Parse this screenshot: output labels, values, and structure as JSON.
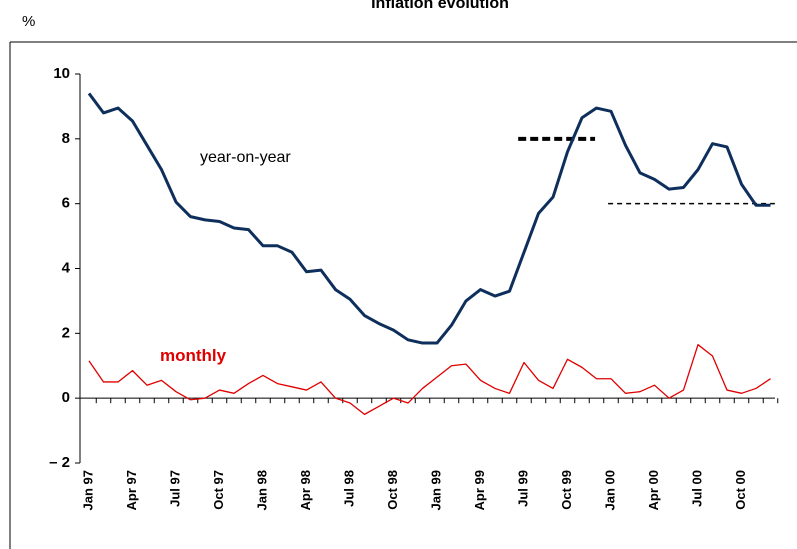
{
  "chart_data": {
    "type": "line",
    "title": "Inflation evolution",
    "y_label": "%",
    "categories": [
      "Jan 97",
      null,
      null,
      "Apr 97",
      null,
      null,
      "Jul 97",
      null,
      null,
      "Oct 97",
      null,
      null,
      "Jan 98",
      null,
      null,
      "Apr 98",
      null,
      null,
      "Jul 98",
      null,
      null,
      "Oct 98",
      null,
      null,
      "Jan 99",
      null,
      null,
      "Apr 99",
      null,
      null,
      "Jul 99",
      null,
      null,
      "Oct 99",
      null,
      null,
      "Jan 00",
      null,
      null,
      "Apr 00",
      null,
      null,
      "Jul 00",
      null,
      null,
      "Oct 00",
      null,
      null
    ],
    "series": [
      {
        "name": "year-on-year",
        "color": "#0e2f5c",
        "values": [
          9.4,
          8.8,
          8.95,
          8.55,
          7.8,
          7.05,
          6.05,
          5.6,
          5.5,
          5.45,
          5.25,
          5.2,
          4.7,
          4.7,
          4.5,
          3.9,
          3.95,
          3.35,
          3.05,
          2.55,
          2.3,
          2.1,
          1.8,
          1.7,
          1.7,
          2.25,
          3.0,
          3.35,
          3.15,
          3.3,
          4.5,
          5.7,
          6.2,
          7.6,
          8.65,
          8.95,
          8.85,
          7.8,
          6.95,
          6.75,
          6.45,
          6.5,
          7.05,
          7.85,
          7.75,
          6.6,
          5.95,
          5.95
        ]
      },
      {
        "name": "monthly",
        "color": "#e00000",
        "values": [
          1.15,
          0.5,
          0.5,
          0.85,
          0.4,
          0.55,
          0.2,
          -0.05,
          0.0,
          0.25,
          0.15,
          0.45,
          0.7,
          0.45,
          0.35,
          0.25,
          0.5,
          0.0,
          -0.15,
          -0.5,
          -0.25,
          0.0,
          -0.15,
          0.3,
          0.65,
          1.0,
          1.05,
          0.55,
          0.3,
          0.15,
          1.1,
          0.55,
          0.3,
          1.2,
          0.95,
          0.6,
          0.6,
          0.15,
          0.2,
          0.4,
          0.0,
          0.25,
          1.65,
          1.3,
          0.25,
          0.15,
          0.3,
          0.6
        ]
      }
    ],
    "reference_lines": [
      {
        "value": 8
      },
      {
        "value": 6
      }
    ],
    "ylim": [
      -2,
      10
    ],
    "yticks": [
      {
        "value": -2,
        "label": "– 2"
      },
      0,
      2,
      4,
      6,
      8,
      10
    ],
    "grid": false
  }
}
